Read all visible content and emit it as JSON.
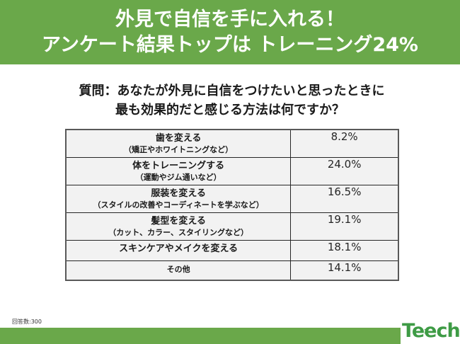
{
  "header": {
    "title_line1": "外見で自信を手に入れる！",
    "title_line2": "アンケート結果トップは トレーニング24%",
    "background_color": "#6aa84a"
  },
  "question": {
    "line1": "質問：あなたが外見に自信をつけたいと思ったときに",
    "line2": "最も効果的だと感じる方法は何ですか？"
  },
  "table": {
    "rows": [
      {
        "label": "歯を変える",
        "sub": "（矯正やホワイトニングなど）",
        "value": "8.2%"
      },
      {
        "label": "体をトレーニングする",
        "sub": "（運動やジム通いなど）",
        "value": "24.0%"
      },
      {
        "label": "服装を変える",
        "sub": "（スタイルの改善やコーディネートを学ぶなど）",
        "value": "16.5%"
      },
      {
        "label": "髪型を変える",
        "sub": "（カット、カラー、スタイリングなど）",
        "value": "19.1%"
      },
      {
        "label": "スキンケアやメイクを変える",
        "sub": "",
        "value": "18.1%"
      },
      {
        "label": "その他",
        "sub": "",
        "value": "14.1%"
      }
    ]
  },
  "footnote": "回答数:300",
  "logo": {
    "text": "Teech",
    "color": "#3e9b45"
  }
}
